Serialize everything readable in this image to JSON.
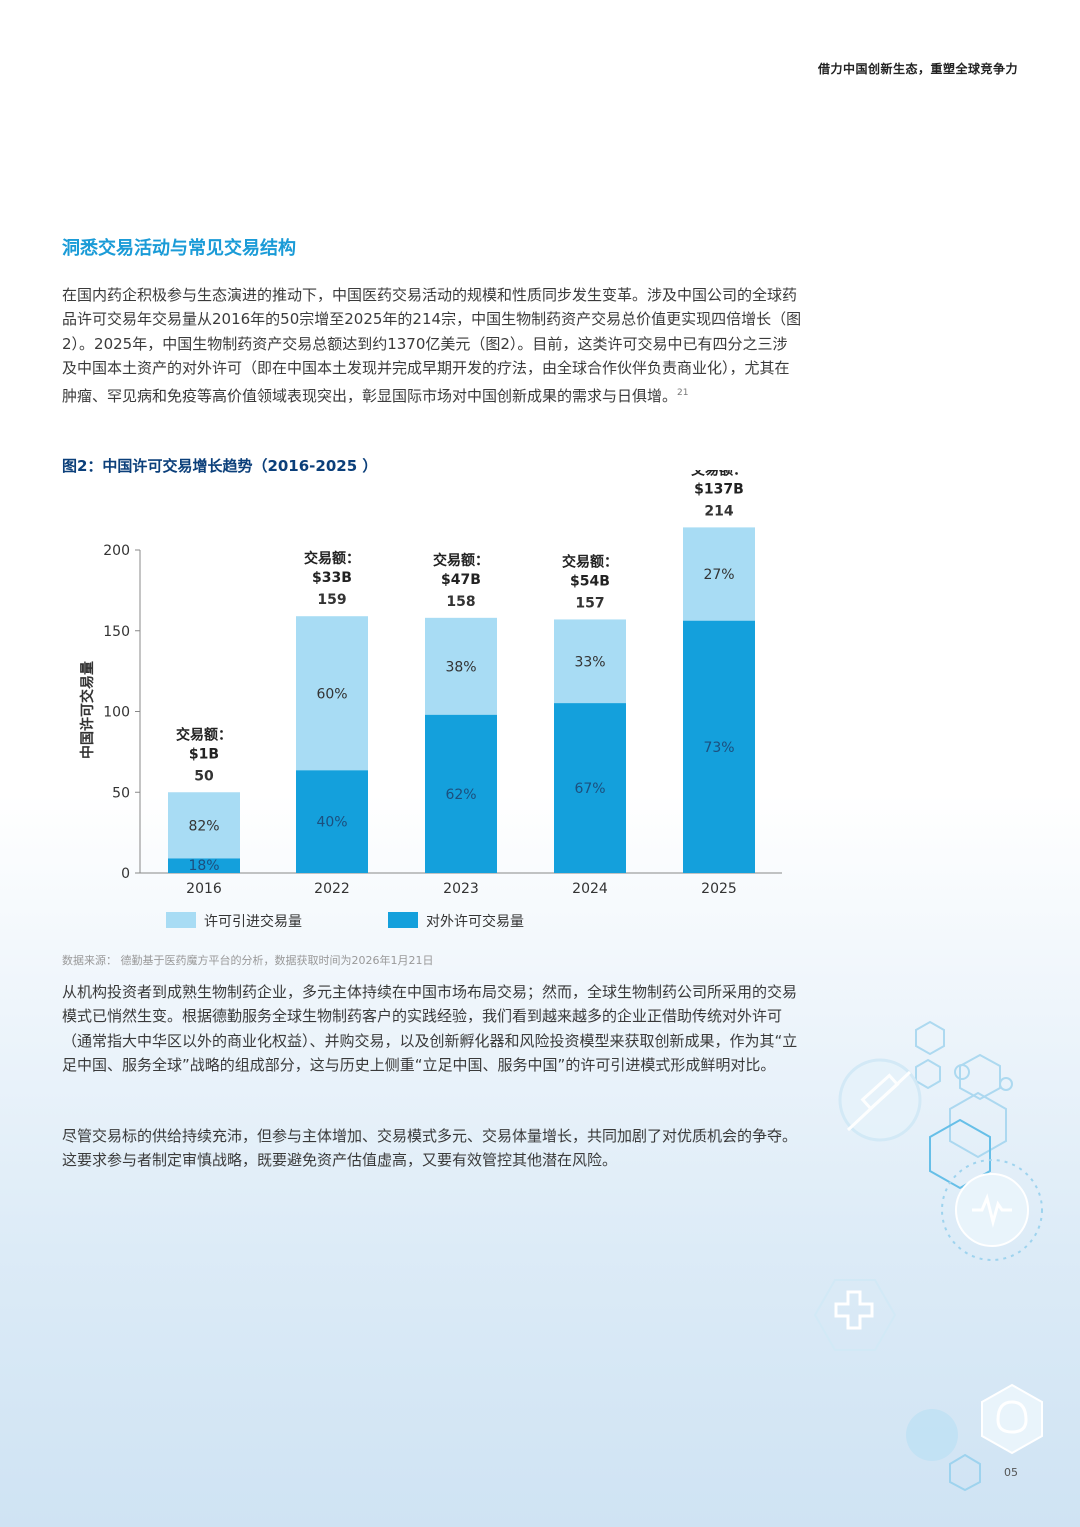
{
  "header": {
    "tagline": "借力中国创新生态，重塑全球竞争力"
  },
  "section": {
    "heading": "洞悉交易活动与常见交易结构"
  },
  "paragraphs": {
    "p1": "在国内药企积极参与生态演进的推动下，中国医药交易活动的规模和性质同步发生变革。涉及中国公司的全球药品许可交易年交易量从2016年的50宗增至2025年的214宗，中国生物制药资产交易总价值更实现四倍增长（图2）。2025年，中国生物制药资产交易总额达到约1370亿美元（图2）。目前，这类许可交易中已有四分之三涉及中国本土资产的对外许可（即在中国本土发现并完成早期开发的疗法，由全球合作伙伴负责商业化），尤其在肿瘤、罕见病和免疫等高价值领域表现突出，彰显国际市场对中国创新成果的需求与日俱增。",
    "p1_sup": "21",
    "p2": "从机构投资者到成熟生物制药企业，多元主体持续在中国市场布局交易；然而，全球生物制药公司所采用的交易模式已悄然生变。根据德勤服务全球生物制药客户的实践经验，我们看到越来越多的企业正借助传统对外许可（通常指大中华区以外的商业化权益）、并购交易，以及创新孵化器和风险投资模型来获取创新成果，作为其“立足中国、服务全球”战略的组成部分，这与历史上侧重“立足中国、服务中国”的许可引进模式形成鲜明对比。",
    "p3": "尽管交易标的供给持续充沛，但参与主体增加、交易模式多元、交易体量增长，共同加剧了对优质机会的争夺。这要求参与者制定审慎战略，既要避免资产估值虚高，又要有效管控其他潜在风险。"
  },
  "figure": {
    "caption": "图2：中国许可交易增长趋势（2016-2025 ）",
    "source": "数据来源： 德勤基于医药魔方平台的分析，数据获取时间为2026年1月21日"
  },
  "chart_data": {
    "type": "bar",
    "stacked": true,
    "categories": [
      "2016",
      "2022",
      "2023",
      "2024",
      "2025"
    ],
    "totals": [
      50,
      159,
      158,
      157,
      214
    ],
    "deal_value_label": "交易额：",
    "deal_values": [
      "$1B",
      "$33B",
      "$47B",
      "$54B",
      "$137B"
    ],
    "ylabel": "中国许可交易量",
    "ylim": [
      0,
      200
    ],
    "yticks": [
      0,
      50,
      100,
      150,
      200
    ],
    "legend_position": "bottom",
    "series": [
      {
        "name": "对外许可交易量",
        "color": "#14a0dc",
        "percent_labels": [
          "18%",
          "40%",
          "62%",
          "67%",
          "73%"
        ],
        "share": [
          0.18,
          0.4,
          0.62,
          0.67,
          0.73
        ]
      },
      {
        "name": "许可引进交易量",
        "color": "#a8dcf4",
        "percent_labels": [
          "82%",
          "60%",
          "38%",
          "33%",
          "27%"
        ],
        "share": [
          0.82,
          0.6,
          0.38,
          0.33,
          0.27
        ]
      }
    ]
  },
  "page": {
    "number": "05"
  }
}
